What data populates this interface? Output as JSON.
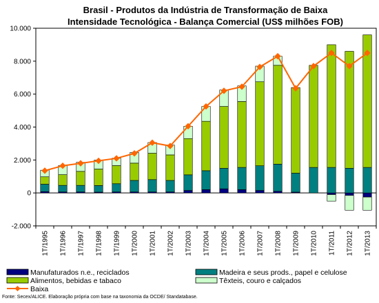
{
  "chart_data": {
    "type": "bar",
    "title_lines": [
      "Brasil - Produtos da Indústria de Transformação de Baixa",
      "Intensidade Tecnológica - Balança Comercial (US$ milhões FOB)"
    ],
    "categories": [
      "1T/1995",
      "1T/1996",
      "1T/1997",
      "1T/1998",
      "1T/1999",
      "1T/2000",
      "1T/2001",
      "1T/2002",
      "1T/2003",
      "1T/2004",
      "1T/2005",
      "1T/2006",
      "1T/2007",
      "1T/2008",
      "1T/2009",
      "1T/2010",
      "1T/2011",
      "1T/2012",
      "1T/2013"
    ],
    "ylim": [
      -2000,
      10000
    ],
    "yticks": [
      -2000,
      0,
      2000,
      4000,
      6000,
      8000,
      10000
    ],
    "ytick_labels": [
      "-2.000",
      "0",
      "2.000",
      "4.000",
      "6.000",
      "8.000",
      "10.000"
    ],
    "stacked": true,
    "series": [
      {
        "name": "Manufaturados n.e., reciclados",
        "kind": "bar",
        "color": "#000080",
        "values": [
          80,
          60,
          60,
          50,
          60,
          60,
          60,
          60,
          150,
          200,
          250,
          200,
          150,
          100,
          50,
          0,
          -100,
          -150,
          -250
        ]
      },
      {
        "name": "Madeira e seus prods., papel e celulose",
        "kind": "bar",
        "color": "#008080",
        "values": [
          450,
          400,
          400,
          400,
          500,
          700,
          750,
          700,
          950,
          1150,
          1250,
          1350,
          1500,
          1650,
          1150,
          1550,
          1550,
          1500,
          1550
        ]
      },
      {
        "name": "Alimentos, bebidas e tabaco",
        "kind": "bar",
        "color": "#99cc00",
        "values": [
          450,
          650,
          850,
          1000,
          1100,
          1050,
          1600,
          1550,
          2200,
          3000,
          3750,
          4000,
          5100,
          6000,
          5200,
          6200,
          7450,
          7100,
          8050
        ]
      },
      {
        "name": "Têxteis, couro e calçados",
        "kind": "bar",
        "color": "#ccffcc",
        "values": [
          400,
          550,
          550,
          550,
          450,
          650,
          650,
          600,
          750,
          900,
          1000,
          950,
          950,
          550,
          0,
          0,
          -400,
          -900,
          -800
        ]
      },
      {
        "name": "Baixa",
        "kind": "line",
        "color": "#ff6600",
        "values": [
          1350,
          1650,
          1800,
          1950,
          2100,
          2400,
          3050,
          2850,
          4050,
          5250,
          6200,
          6450,
          7650,
          8300,
          6350,
          7700,
          8500,
          7700,
          8500
        ]
      }
    ],
    "legend_placement": "bottom",
    "grid": false,
    "source": "Fonte: Secex/ALICE. Elaboração própria com base na taxonomia da OCDE/ Standatabase."
  }
}
